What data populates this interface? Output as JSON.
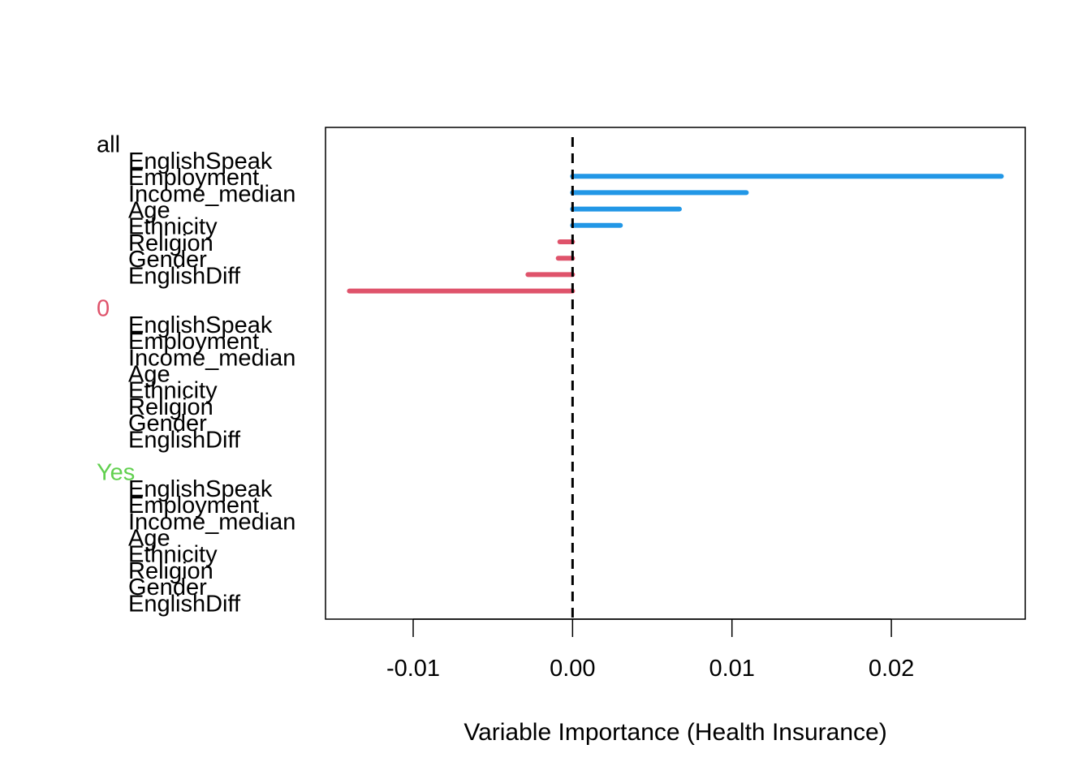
{
  "chart_data": {
    "type": "bar",
    "orientation": "horizontal",
    "xlabel": "Variable Importance (Health Insurance)",
    "xlim": [
      -0.0155,
      0.0284
    ],
    "xticks": [
      -0.01,
      0.0,
      0.01,
      0.02
    ],
    "xtick_labels": [
      "-0.01",
      "0.00",
      "0.01",
      "0.02"
    ],
    "reference_line": {
      "x": 0,
      "style": "dashed"
    },
    "colors": {
      "positive": "#2297E6",
      "negative": "#DF536B",
      "axis": "#000000"
    },
    "groups": [
      {
        "label": "all",
        "label_color": "#000000",
        "variables": [
          "EnglishSpeak",
          "Employment",
          "Income_median",
          "Age",
          "Ethnicity",
          "Religion",
          "Gender",
          "EnglishDiff"
        ],
        "values": [
          0.0269,
          0.0109,
          0.0067,
          0.003,
          -0.0008,
          -0.0009,
          -0.0028,
          -0.014
        ]
      },
      {
        "label": "0",
        "label_color": "#DF536B",
        "variables": [
          "EnglishSpeak",
          "Employment",
          "Income_median",
          "Age",
          "Ethnicity",
          "Religion",
          "Gender",
          "EnglishDiff"
        ],
        "values": [
          0,
          0,
          0,
          0,
          0,
          0,
          0,
          0
        ]
      },
      {
        "label": "Yes",
        "label_color": "#61D04F",
        "variables": [
          "EnglishSpeak",
          "Employment",
          "Income_median",
          "Age",
          "Ethnicity",
          "Religion",
          "Gender",
          "EnglishDiff"
        ],
        "values": [
          0,
          0,
          0,
          0,
          0,
          0,
          0,
          0
        ]
      }
    ]
  }
}
